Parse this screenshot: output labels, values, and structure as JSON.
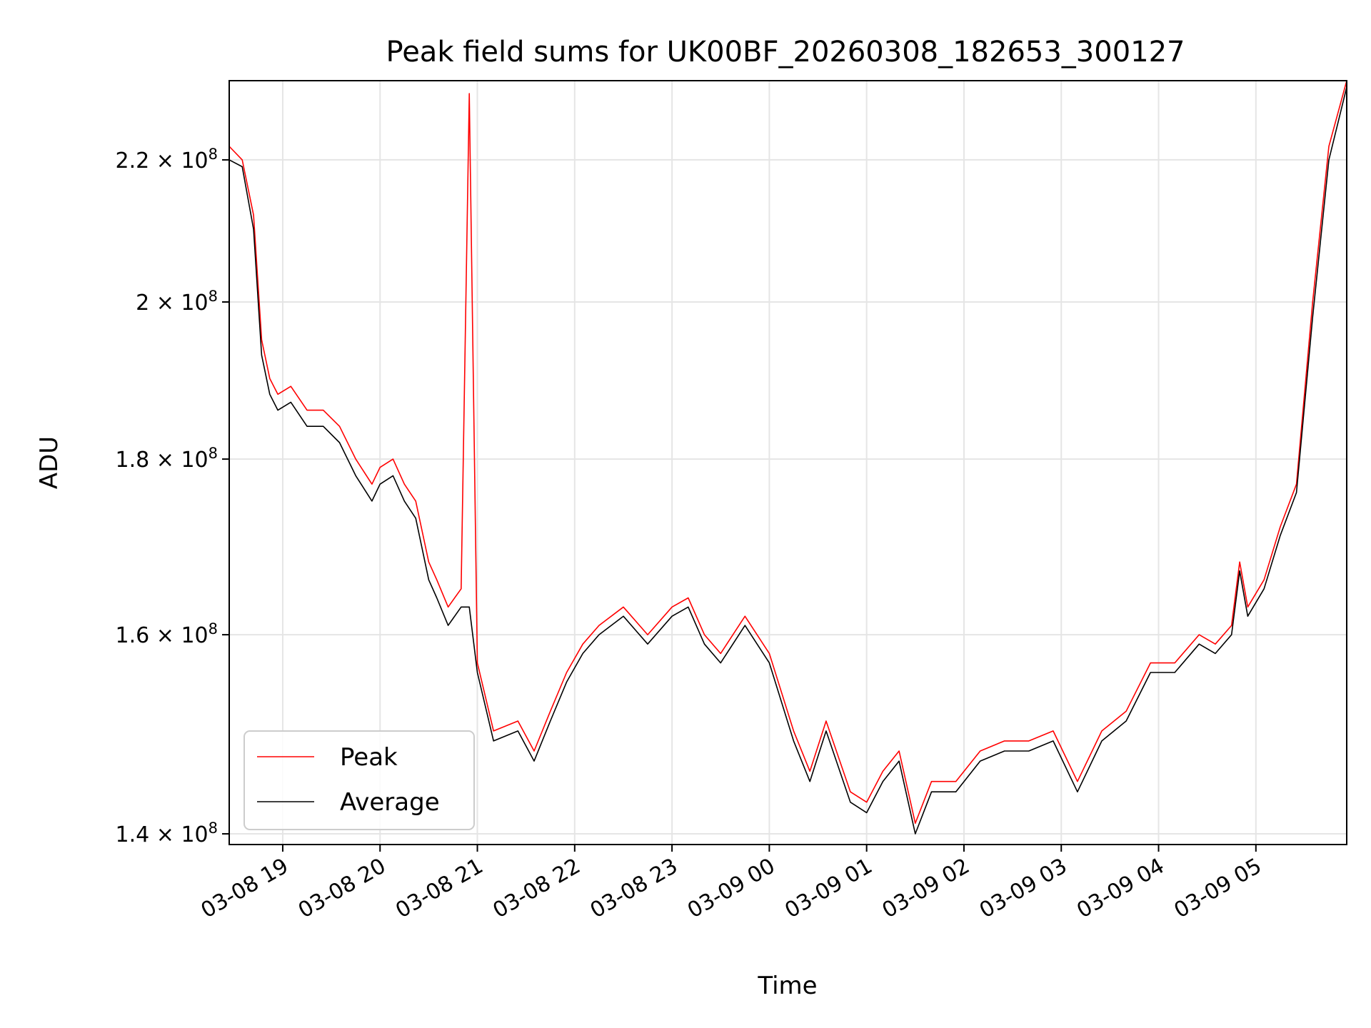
{
  "chart_data": {
    "type": "line",
    "title": "Peak field sums for UK00BF_20260308_182653_300127",
    "xlabel": "Time",
    "ylabel": "ADU",
    "y_scale": "log",
    "ylim": [
      139000000,
      232000000
    ],
    "xlim": [
      "03-08 18:27",
      "03-09 05:56"
    ],
    "grid": true,
    "legend_position": "lower-left",
    "x_ticks": [
      {
        "at": "03-08 19:00",
        "label": "03-08 19"
      },
      {
        "at": "03-08 20:00",
        "label": "03-08 20"
      },
      {
        "at": "03-08 21:00",
        "label": "03-08 21"
      },
      {
        "at": "03-08 22:00",
        "label": "03-08 22"
      },
      {
        "at": "03-08 23:00",
        "label": "03-08 23"
      },
      {
        "at": "03-09 00:00",
        "label": "03-09 00"
      },
      {
        "at": "03-09 01:00",
        "label": "03-09 01"
      },
      {
        "at": "03-09 02:00",
        "label": "03-09 02"
      },
      {
        "at": "03-09 03:00",
        "label": "03-09 03"
      },
      {
        "at": "03-09 04:00",
        "label": "03-09 04"
      },
      {
        "at": "03-09 05:00",
        "label": "03-09 05"
      }
    ],
    "y_ticks": [
      {
        "value": 140000000,
        "mantissa": "1.4",
        "exp": "8"
      },
      {
        "value": 160000000,
        "mantissa": "1.6",
        "exp": "8"
      },
      {
        "value": 180000000,
        "mantissa": "1.8",
        "exp": "8"
      },
      {
        "value": 200000000,
        "mantissa": "2",
        "exp": "8"
      },
      {
        "value": 220000000,
        "mantissa": "2.2",
        "exp": "8"
      }
    ],
    "x": [
      "03-08 18:27",
      "03-08 18:35",
      "03-08 18:42",
      "03-08 18:47",
      "03-08 18:52",
      "03-08 18:57",
      "03-08 19:05",
      "03-08 19:15",
      "03-08 19:25",
      "03-08 19:35",
      "03-08 19:45",
      "03-08 19:55",
      "03-08 20:00",
      "03-08 20:08",
      "03-08 20:15",
      "03-08 20:22",
      "03-08 20:30",
      "03-08 20:35",
      "03-08 20:42",
      "03-08 20:50",
      "03-08 20:55",
      "03-08 21:00",
      "03-08 21:10",
      "03-08 21:25",
      "03-08 21:35",
      "03-08 21:45",
      "03-08 21:55",
      "03-08 22:05",
      "03-08 22:15",
      "03-08 22:30",
      "03-08 22:45",
      "03-08 23:00",
      "03-08 23:10",
      "03-08 23:20",
      "03-08 23:30",
      "03-08 23:45",
      "03-09 00:00",
      "03-09 00:15",
      "03-09 00:25",
      "03-09 00:35",
      "03-09 00:50",
      "03-09 01:00",
      "03-09 01:10",
      "03-09 01:20",
      "03-09 01:30",
      "03-09 01:40",
      "03-09 01:55",
      "03-09 02:10",
      "03-09 02:25",
      "03-09 02:40",
      "03-09 02:55",
      "03-09 03:10",
      "03-09 03:25",
      "03-09 03:40",
      "03-09 03:55",
      "03-09 04:10",
      "03-09 04:25",
      "03-09 04:35",
      "03-09 04:45",
      "03-09 04:50",
      "03-09 04:55",
      "03-09 05:05",
      "03-09 05:15",
      "03-09 05:25",
      "03-09 05:35",
      "03-09 05:45",
      "03-09 05:56"
    ],
    "series": [
      {
        "name": "Peak",
        "color": "#ff0000",
        "values": [
          222000000,
          220000000,
          212000000,
          195000000,
          190000000,
          188000000,
          189000000,
          186000000,
          186000000,
          184000000,
          180000000,
          177000000,
          179000000,
          180000000,
          177000000,
          175000000,
          168000000,
          166000000,
          163000000,
          165000000,
          230000000,
          157000000,
          150000000,
          151000000,
          148000000,
          152000000,
          156000000,
          159000000,
          161000000,
          163000000,
          160000000,
          163000000,
          164000000,
          160000000,
          158000000,
          162000000,
          158000000,
          150000000,
          146000000,
          151000000,
          144000000,
          143000000,
          146000000,
          148000000,
          141000000,
          145000000,
          145000000,
          148000000,
          149000000,
          149000000,
          150000000,
          145000000,
          150000000,
          152000000,
          157000000,
          157000000,
          160000000,
          159000000,
          161000000,
          168000000,
          163000000,
          166000000,
          172000000,
          177000000,
          200000000,
          222000000,
          232000000
        ]
      },
      {
        "name": "Average",
        "color": "#000000",
        "values": [
          220000000,
          219000000,
          210000000,
          193000000,
          188000000,
          186000000,
          187000000,
          184000000,
          184000000,
          182000000,
          178000000,
          175000000,
          177000000,
          178000000,
          175000000,
          173000000,
          166000000,
          164000000,
          161000000,
          163000000,
          163000000,
          156000000,
          149000000,
          150000000,
          147000000,
          151000000,
          155000000,
          158000000,
          160000000,
          162000000,
          159000000,
          162000000,
          163000000,
          159000000,
          157000000,
          161000000,
          157000000,
          149000000,
          145000000,
          150000000,
          143000000,
          142000000,
          145000000,
          147000000,
          140000000,
          144000000,
          144000000,
          147000000,
          148000000,
          148000000,
          149000000,
          144000000,
          149000000,
          151000000,
          156000000,
          156000000,
          159000000,
          158000000,
          160000000,
          167000000,
          162000000,
          165000000,
          171000000,
          176000000,
          198000000,
          220000000,
          231000000
        ]
      }
    ]
  }
}
